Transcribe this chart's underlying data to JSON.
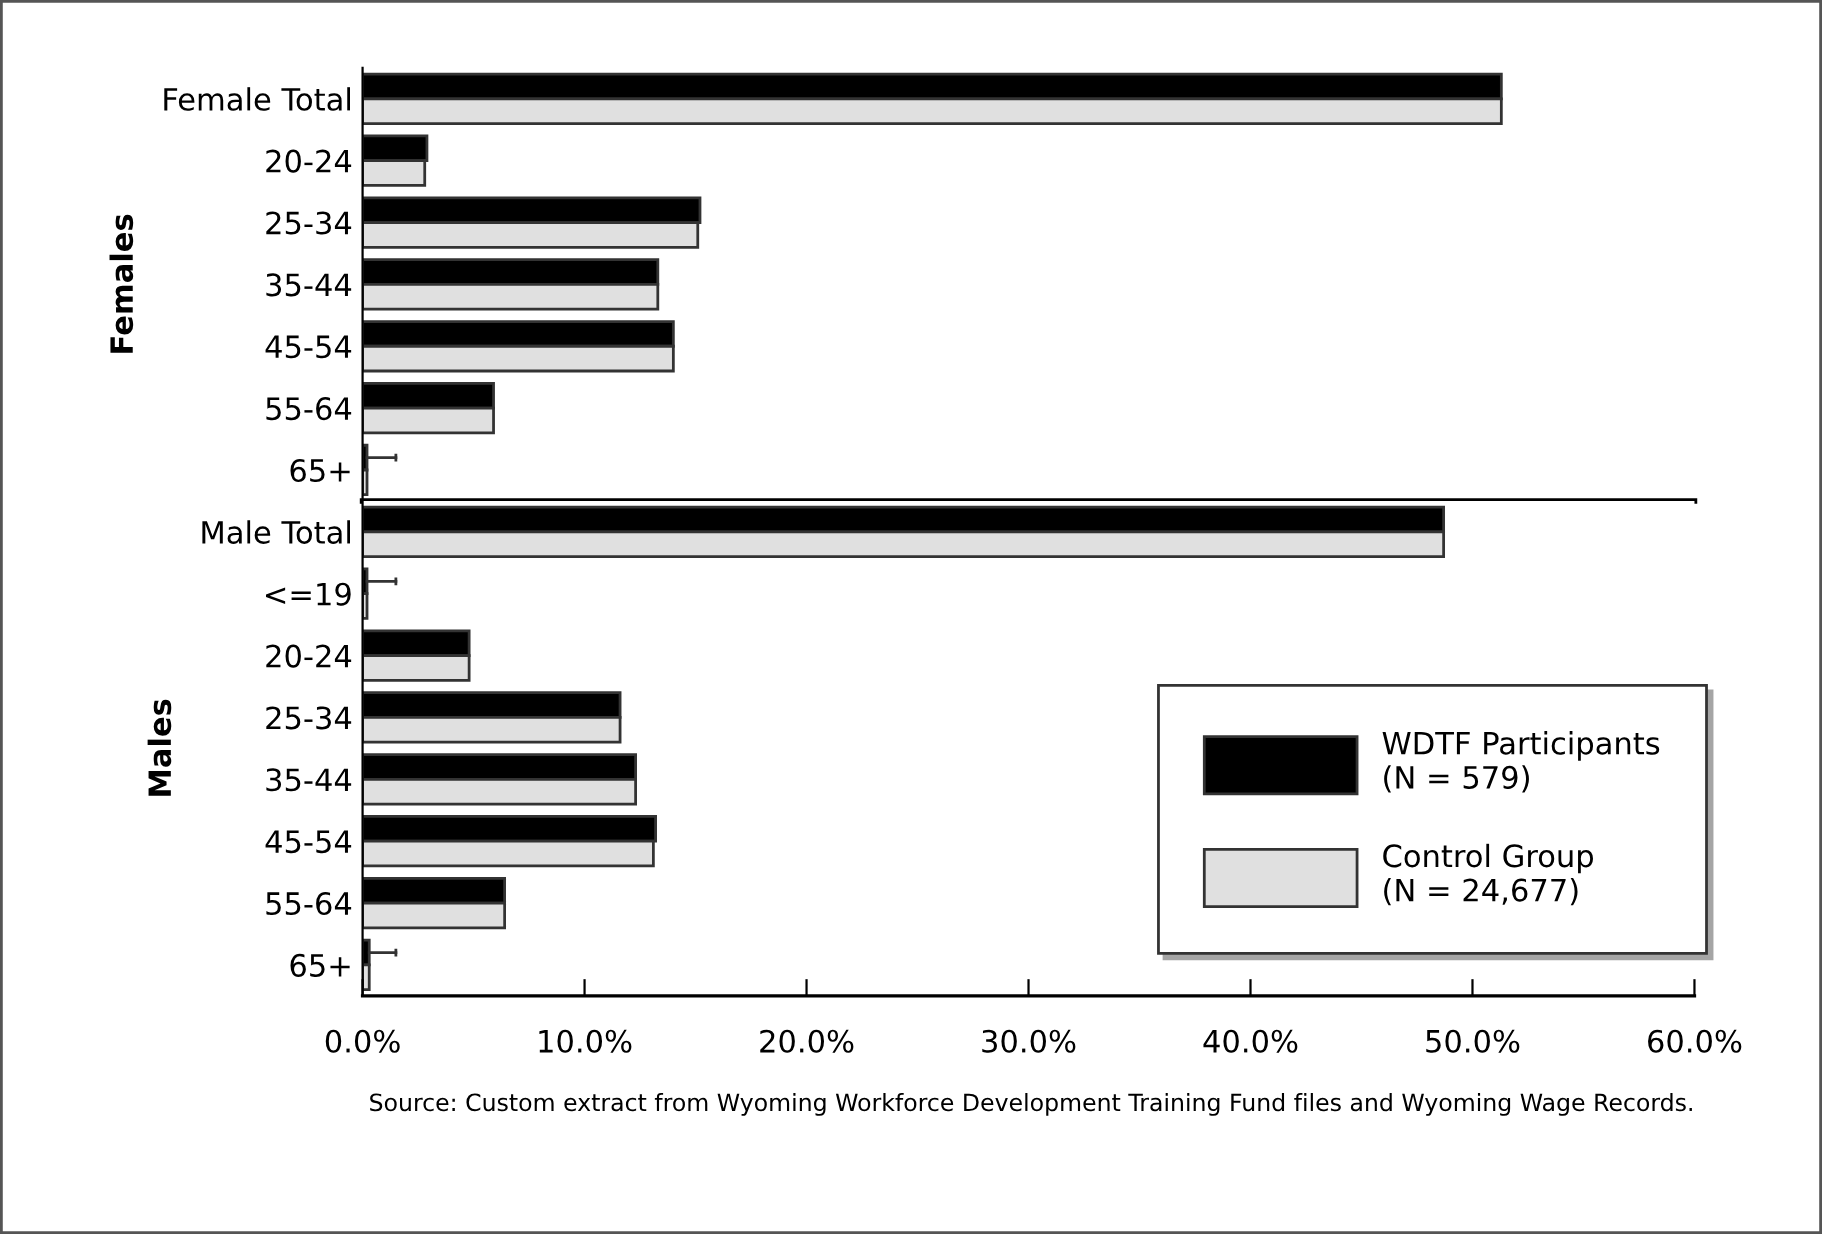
{
  "chart_data": [
    {
      "type": "bar",
      "orientation": "horizontal",
      "ylabel": "Females",
      "categories": [
        "Female Total",
        "20-24",
        "25-34",
        "35-44",
        "45-54",
        "55-64",
        "65+"
      ],
      "series": [
        {
          "color": "#000000",
          "values": [
            51.3,
            2.9,
            15.2,
            13.3,
            14.0,
            5.9,
            0.2
          ],
          "errors": [
            null,
            null,
            null,
            null,
            null,
            null,
            [
              0.2,
              1.5
            ]
          ]
        },
        {
          "color": "#e0e0e0",
          "values": [
            51.3,
            2.8,
            15.1,
            13.3,
            14.0,
            5.9,
            0.2
          ]
        }
      ],
      "xlim": [
        0,
        60
      ],
      "tick_labels": "y",
      "grid": false,
      "legend": false
    },
    {
      "type": "bar",
      "orientation": "horizontal",
      "ylabel": "Males",
      "categories": [
        "Male Total",
        "<=19",
        "20-24",
        "25-34",
        "35-44",
        "45-54",
        "55-64",
        "65+"
      ],
      "series": [
        {
          "name": "WDTF Participants\n(N = 579)",
          "color": "#000000",
          "values": [
            48.7,
            0.2,
            4.8,
            11.6,
            12.3,
            13.2,
            6.4,
            0.3
          ],
          "errors": [
            null,
            [
              0.2,
              1.5
            ],
            null,
            null,
            null,
            null,
            null,
            [
              0.3,
              1.5
            ]
          ]
        },
        {
          "name": "Control Group\n(N = 24,677)",
          "color": "#e0e0e0",
          "values": [
            48.7,
            0.2,
            4.8,
            11.6,
            12.3,
            13.1,
            6.4,
            0.3
          ]
        }
      ],
      "xlim": [
        0,
        60
      ],
      "xticks": [
        {
          "value": 0,
          "label": "0.0%"
        },
        {
          "value": 10,
          "label": "10.0%"
        },
        {
          "value": 20,
          "label": "20.0%"
        },
        {
          "value": 30,
          "label": "30.0%"
        },
        {
          "value": 40,
          "label": "40.0%"
        },
        {
          "value": 50,
          "label": "50.0%"
        },
        {
          "value": 60,
          "label": "60.0%"
        }
      ],
      "grid": false,
      "legend": "bottom right",
      "annotations": [
        "Source: Custom extract from Wyoming Workforce Development Training Fund files and Wyoming Wage Records."
      ]
    }
  ]
}
